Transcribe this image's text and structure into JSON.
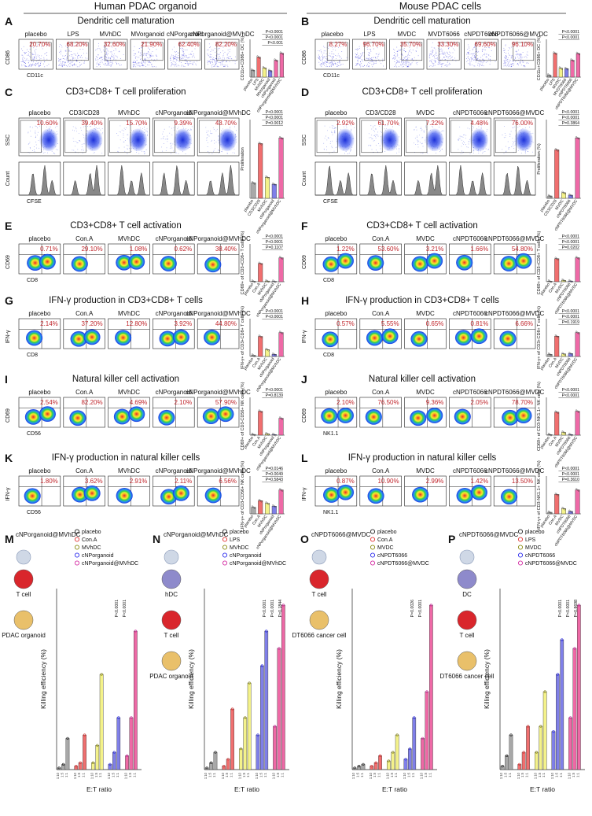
{
  "header": {
    "left": "Human PDAC organoid",
    "right": "Mouse PDAC cells"
  },
  "colors": {
    "pct": "#c0262c",
    "bars": [
      "#a8a8a8",
      "#f06f6f",
      "#f4f28a",
      "#7f7fe8",
      "#ee69a6"
    ],
    "markers": [
      "#222222",
      "#e23232",
      "#8a8a10",
      "#2a2aee",
      "#d42aa2"
    ]
  },
  "panels": {
    "A": {
      "letter": "A",
      "title": "Dendritic cell maturation",
      "samples": [
        "placebo",
        "LPS",
        "MVhDC",
        "MVorganoid",
        "cNPorganoid",
        "cNPorganoid@MVhDC"
      ],
      "pcts": [
        "20.70%",
        "68.20%",
        "32.60%",
        "21.90%",
        "62.40%",
        "82.20%"
      ],
      "xaxis": "CD11c",
      "yaxis": "CD86",
      "bar_ylabel": "CD11c+CD86+ DC (%)",
      "bar_cats": [
        "placebo",
        "LPS",
        "MVhDC",
        "MVorganoid",
        "cNPorganoid",
        "cNPorganoid@MVhDC"
      ],
      "bar_values": [
        25,
        71,
        33,
        23,
        60,
        85
      ],
      "pvalues": [
        "P<0.0001",
        "P<0.0001",
        "P<0.001"
      ]
    },
    "B": {
      "letter": "B",
      "title": "Dendritic cell maturation",
      "samples": [
        "placebo",
        "LPS",
        "MVDC",
        "MVDT6066",
        "cNPDT6066",
        "cNPDT6066@MVDC"
      ],
      "pcts": [
        "8.27%",
        "96.70%",
        "35.70%",
        "33.30%",
        "69.60%",
        "96.10%"
      ],
      "xaxis": "CD11c",
      "yaxis": "CD86",
      "bar_ylabel": "CD11c+CD86+ DC (%)",
      "bar_cats": [
        "placebo",
        "LPS",
        "MVDC",
        "MVDT6066",
        "cNPDT6066",
        "cNPDT6066@MVDC"
      ],
      "bar_values": [
        8,
        96,
        36,
        34,
        68,
        95
      ],
      "pvalues": [
        "P<0.0001",
        "P<0.0001"
      ]
    },
    "C": {
      "letter": "C",
      "title": "CD3+CD8+ T cell proliferation",
      "samples": [
        "placebo",
        "CD3/CD28",
        "MVhDC",
        "cNPorganoid",
        "cNPorganoid@MVhDC"
      ],
      "pcts": [
        "10.60%",
        "39.40%",
        "15.70%",
        "9.39%",
        "43.70%"
      ],
      "xaxis": "CFSE",
      "yaxis": "SSC",
      "hist_yaxis": "Count",
      "bar_ylabel": "Proliferation",
      "bar_cats": [
        "placebo",
        "CD3/CD28",
        "MVhDC",
        "cNPorganoid",
        "cNPorganoid@MVhDC"
      ],
      "bar_values": [
        11,
        39,
        15,
        10,
        43
      ],
      "pvalues": [
        "P<0.0001",
        "P<0.0001",
        "P=0.0012"
      ]
    },
    "D": {
      "letter": "D",
      "title": "CD3+CD8+ T cell proliferation",
      "samples": [
        "placebo",
        "CD3/CD28",
        "MVDC",
        "cNPDT6066",
        "cNPDT6066@MVDC"
      ],
      "pcts": [
        "2.92%",
        "61.70%",
        "7.22%",
        "4.48%",
        "76.00%"
      ],
      "xaxis": "CFSE",
      "yaxis": "SSC",
      "hist_yaxis": "Count",
      "bar_ylabel": "Proliferation (%)",
      "bar_cats": [
        "placebo",
        "CD3/CD28",
        "MVDC",
        "cNPDT6066",
        "cNPDT6066@MVDC"
      ],
      "bar_values": [
        3,
        61,
        7,
        4,
        76
      ],
      "pvalues": [
        "P<0.0001",
        "P<0.0001",
        "P=0.3864"
      ]
    },
    "E": {
      "letter": "E",
      "title": "CD3+CD8+ T cell activation",
      "samples": [
        "placebo",
        "Con.A",
        "MVhDC",
        "cNPorganoid",
        "cNPorganoid@MVhDC"
      ],
      "pcts": [
        "0.71%",
        "29.10%",
        "1.08%",
        "0.62%",
        "38.40%"
      ],
      "xaxis": "CD8",
      "yaxis": "CD69",
      "bar_ylabel": "CD69+ of CD3+CD8+ T cells (%)",
      "bar_cats": [
        "placebo",
        "Con.A",
        "MVhDC",
        "cNPorganoid",
        "cNPorganoid@MVhDC"
      ],
      "bar_values": [
        0.8,
        29,
        1.1,
        0.6,
        38
      ],
      "pvalues": [
        "P<0.0001",
        "P<0.0001",
        "P=0.1107"
      ]
    },
    "F": {
      "letter": "F",
      "title": "CD3+CD8+ T cell activation",
      "samples": [
        "placebo",
        "Con.A",
        "MVDC",
        "cNPDT6066",
        "cNPDT6066@MVDC"
      ],
      "pcts": [
        "1.22%",
        "53.60%",
        "3.21%",
        "1.66%",
        "54.80%"
      ],
      "xaxis": "CD8",
      "yaxis": "CD69",
      "bar_ylabel": "CD69+ of CD3+CD8+ T cells (%)",
      "bar_cats": [
        "placebo",
        "Con.A",
        "MVDC",
        "cNPDT6066",
        "cNPDT6066@MVDC"
      ],
      "bar_values": [
        1.2,
        53,
        3.2,
        1.6,
        55
      ],
      "pvalues": [
        "P<0.0001",
        "P<0.0001",
        "P=0.0202"
      ]
    },
    "G": {
      "letter": "G",
      "title": "IFN-γ production in CD3+CD8+ T cells",
      "samples": [
        "placebo",
        "Con.A",
        "MVhDC",
        "cNPorganoid",
        "cNPorganoid@MVhDC"
      ],
      "pcts": [
        "2.14%",
        "37.20%",
        "12.80%",
        "3.92%",
        "44.80%"
      ],
      "xaxis": "CD8",
      "yaxis": "IFN-γ",
      "bar_ylabel": "IFN-γ+ of CD3+CD8+ T cells (%)",
      "bar_cats": [
        "placebo",
        "Con.A",
        "MVhDC",
        "cNPorganoid",
        "cNPorganoid@MVhDC"
      ],
      "bar_values": [
        2.2,
        37,
        12.8,
        4,
        44
      ],
      "pvalues": [
        "P<0.0001",
        "P<0.0001"
      ]
    },
    "H": {
      "letter": "H",
      "title": "IFN-γ production in CD3+CD8+ T cells",
      "samples": [
        "placebo",
        "Con.A",
        "MVDC",
        "cNPDT6066",
        "cNPDT6066@MVDC"
      ],
      "pcts": [
        "0.57%",
        "5.55%",
        "0.65%",
        "0.81%",
        "6.66%"
      ],
      "xaxis": "CD8",
      "yaxis": "IFN-γ",
      "bar_ylabel": "IFN-γ+ of CD3+CD8+ T cells (%)",
      "bar_cats": [
        "placebo",
        "Con.A",
        "MVDC",
        "cNPDT6066",
        "cNPDT6066@MVDC"
      ],
      "bar_values": [
        0.6,
        5.6,
        0.7,
        0.8,
        6.6
      ],
      "pvalues": [
        "P<0.0001",
        "P<0.0001",
        "P=0.1919"
      ]
    },
    "I": {
      "letter": "I",
      "title": "Natural killer cell activation",
      "samples": [
        "placebo",
        "Con.A",
        "MVhDC",
        "cNPorganoid",
        "cNPorganoid@MVhDC"
      ],
      "pcts": [
        "2.54%",
        "82.20%",
        "4.69%",
        "2.10%",
        "57.90%"
      ],
      "xaxis": "CD56",
      "yaxis": "CD69",
      "bar_ylabel": "CD69+ of CD3-CD56+ NK cells (%)",
      "bar_cats": [
        "placebo",
        "Con.A",
        "MVhDC",
        "cNPorganoid",
        "cNPorganoid@MVhDC"
      ],
      "bar_values": [
        2.5,
        82,
        4.7,
        2.1,
        58
      ],
      "pvalues": [
        "P<0.0001",
        "P=0.8139"
      ]
    },
    "J": {
      "letter": "J",
      "title": "Natural killer cell activation",
      "samples": [
        "placebo",
        "Con.A",
        "MVDC",
        "cNPDT6066",
        "cNPDT6066@MVDC"
      ],
      "pcts": [
        "2.10%",
        "76.50%",
        "9.36%",
        "2.05%",
        "78.70%"
      ],
      "xaxis": "NK1.1",
      "yaxis": "CD69",
      "bar_ylabel": "CD69+ of CD3-NK1.1+ NK cells (%)",
      "bar_cats": [
        "placebo",
        "Con.A",
        "MVDC",
        "cNPDT6066",
        "cNPDT6066@MVDC"
      ],
      "bar_values": [
        2.1,
        76,
        9.4,
        2.1,
        79
      ],
      "pvalues": [
        "P<0.0001",
        "P<0.0001"
      ]
    },
    "K": {
      "letter": "K",
      "title": "IFN-γ production in natural killer cells",
      "samples": [
        "placebo",
        "Con.A",
        "MVhDC",
        "cNPorganoid",
        "cNPorganoid@MVhDC"
      ],
      "pcts": [
        "1.80%",
        "3.62%",
        "2.91%",
        "2.11%",
        "6.56%"
      ],
      "xaxis": "CD56",
      "yaxis": "IFN-γ",
      "bar_ylabel": "IFN-γ+ of CD3-CD56+ NK cells (%)",
      "bar_cats": [
        "placebo",
        "Con.A",
        "MVhDC",
        "cNPorganoid",
        "cNPorganoid@MVhDC"
      ],
      "bar_values": [
        1.8,
        3.6,
        2.9,
        2.1,
        6.5
      ],
      "pvalues": [
        "P=0.0146",
        "P=0.0049",
        "P=0.5843"
      ]
    },
    "L": {
      "letter": "L",
      "title": "IFN-γ production in natural killer cells",
      "samples": [
        "placebo",
        "Con.A",
        "MVDC",
        "cNPDT6066",
        "cNPDT6066@MVDC"
      ],
      "pcts": [
        "0.87%",
        "10.90%",
        "2.99%",
        "1.42%",
        "13.50%"
      ],
      "xaxis": "NK1.1",
      "yaxis": "IFN-γ",
      "bar_ylabel": "IFN-γ+ of CD3-NK1.1+ NK cells (%)",
      "bar_cats": [
        "placebo",
        "Con.A",
        "MVDC",
        "cNPDT6066",
        "cNPDT6066@MVDC"
      ],
      "bar_values": [
        0.9,
        11,
        3,
        1.4,
        13.5
      ],
      "pvalues": [
        "P<0.0001",
        "P<0.0001",
        "P=0.3610"
      ]
    },
    "M": {
      "letter": "M",
      "schematic_top": "cNPorganoid@MVhDC",
      "schematic_cells": [
        "T cell",
        "PDAC organoid"
      ],
      "legend": [
        "placebo",
        "Con.A",
        "MVhDC",
        "cNPorganoid",
        "cNPorganoid@MVhDC"
      ],
      "pvalues": [
        "P<0.0001",
        "P<0.0001"
      ]
    },
    "N": {
      "letter": "N",
      "schematic_top": "cNPorganoid@MVhDC",
      "schematic_cells": [
        "hDC",
        "T cell",
        "PDAC organoid"
      ],
      "legend": [
        "placebo",
        "LPS",
        "MVhDC",
        "cNPorganoid",
        "cNPorganoid@MVhDC"
      ],
      "pvalues": [
        "P<0.0001",
        "P<0.0001",
        "P=0.1844"
      ]
    },
    "O": {
      "letter": "O",
      "schematic_top": "cNPDT6066@MVDC",
      "schematic_cells": [
        "T cell",
        "DT6066 cancer cell"
      ],
      "legend": [
        "placebo",
        "Con.A",
        "MVDC",
        "cNPDT6066",
        "cNPDT6066@MVDC"
      ],
      "pvalues": [
        "P=0.0026",
        "P<0.0001"
      ]
    },
    "P": {
      "letter": "P",
      "schematic_top": "cNPDT6066@MVDC",
      "schematic_cells": [
        "DC",
        "T cell",
        "DT6066 cancer cell"
      ],
      "legend": [
        "placebo",
        "LPS",
        "MVDC",
        "cNPDT6066",
        "cNPDT6066@MVDC"
      ],
      "pvalues": [
        "P<0.0001",
        "P<0.0001",
        "P=0.8698"
      ]
    }
  },
  "chart_data": {
    "type": "bar",
    "title": "Killing efficiency (%)",
    "xlabel": "E:T ratio",
    "ylabel": "Killing efficiency (%)",
    "categories": [
      "1:10",
      "1:5",
      "1:1"
    ],
    "ylim": [
      0,
      100
    ],
    "panels": [
      {
        "panel": "M",
        "series": [
          {
            "name": "placebo",
            "values": [
              1,
              3,
              18
            ]
          },
          {
            "name": "Con.A",
            "values": [
              2,
              4,
              20
            ]
          },
          {
            "name": "MVhDC",
            "values": [
              4,
              14,
              55
            ]
          },
          {
            "name": "cNPorganoid",
            "values": [
              3,
              10,
              30
            ]
          },
          {
            "name": "cNPorganoid@MVhDC",
            "values": [
              8,
              30,
              80
            ]
          }
        ]
      },
      {
        "panel": "N",
        "series": [
          {
            "name": "placebo",
            "values": [
              1,
              4,
              10
            ]
          },
          {
            "name": "LPS",
            "values": [
              2,
              6,
              35
            ]
          },
          {
            "name": "MVhDC",
            "values": [
              12,
              30,
              50
            ]
          },
          {
            "name": "cNPorganoid",
            "values": [
              20,
              60,
              80
            ]
          },
          {
            "name": "cNPorganoid@MVhDC",
            "values": [
              25,
              70,
              95
            ]
          }
        ]
      },
      {
        "panel": "O",
        "series": [
          {
            "name": "placebo",
            "values": [
              1,
              2,
              3
            ]
          },
          {
            "name": "Con.A",
            "values": [
              2,
              4,
              8
            ]
          },
          {
            "name": "MVDC",
            "values": [
              5,
              10,
              20
            ]
          },
          {
            "name": "cNPDT6066",
            "values": [
              6,
              12,
              30
            ]
          },
          {
            "name": "cNPDT6066@MVDC",
            "values": [
              18,
              45,
              95
            ]
          }
        ]
      },
      {
        "panel": "P",
        "series": [
          {
            "name": "placebo",
            "values": [
              2,
              8,
              20
            ]
          },
          {
            "name": "LPS",
            "values": [
              3,
              10,
              25
            ]
          },
          {
            "name": "MVDC",
            "values": [
              10,
              25,
              45
            ]
          },
          {
            "name": "cNPDT6066",
            "values": [
              22,
              55,
              75
            ]
          },
          {
            "name": "cNPDT6066@MVDC",
            "values": [
              30,
              70,
              95
            ]
          }
        ]
      }
    ]
  }
}
